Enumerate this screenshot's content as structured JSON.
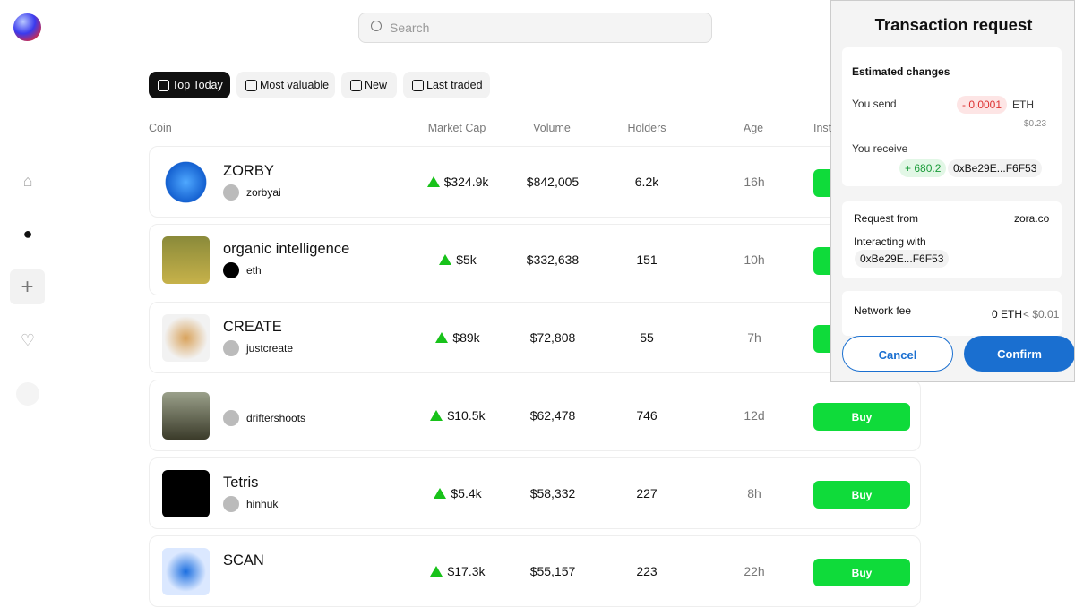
{
  "search": {
    "placeholder": "Search"
  },
  "tabs": [
    "Top Today",
    "Most valuable",
    "New",
    "Last traded"
  ],
  "table": {
    "headers": [
      "Coin",
      "Market Cap",
      "Volume",
      "Holders",
      "Age",
      "Inst"
    ],
    "rows": [
      {
        "name": "ZORBY",
        "creator": "zorbyai",
        "market_cap": "$324.9k",
        "volume": "$842,005",
        "holders": "6.2k",
        "age": "16h"
      },
      {
        "name": "organic intelligence",
        "creator": "eth",
        "market_cap": "$5k",
        "volume": "$332,638",
        "holders": "151",
        "age": "10h"
      },
      {
        "name": "CREATE",
        "creator": "justcreate",
        "market_cap": "$89k",
        "volume": "$72,808",
        "holders": "55",
        "age": "7h"
      },
      {
        "creator": "driftershoots",
        "market_cap": "$10.5k",
        "volume": "$62,478",
        "holders": "746",
        "age": "12d",
        "action": "Buy"
      },
      {
        "name": "Tetris",
        "creator": "hinhuk",
        "market_cap": "$5.4k",
        "volume": "$58,332",
        "holders": "227",
        "age": "8h",
        "action": "Buy"
      },
      {
        "name": "SCAN",
        "market_cap": "$17.3k",
        "volume": "$55,157",
        "holders": "223",
        "age": "22h",
        "action": "Buy"
      }
    ]
  },
  "modal": {
    "title": "Transaction request",
    "estimated_changes": "Estimated changes",
    "send_label": "You send",
    "send_amount": "- 0.0001",
    "send_token": "ETH",
    "send_usd": "$0.23",
    "receive_label": "You receive",
    "receive_amount": "+ 680.2",
    "receive_token": "0xBe29E...F6F53",
    "request_from_label": "Request from",
    "request_from": "zora.co",
    "interacting_label": "Interacting with",
    "interacting_address": "0xBe29E...F6F53",
    "fee_label": "Network fee",
    "fee_eth": "0 ETH",
    "fee_usd": "< $0.01",
    "cancel": "Cancel",
    "confirm": "Confirm"
  }
}
